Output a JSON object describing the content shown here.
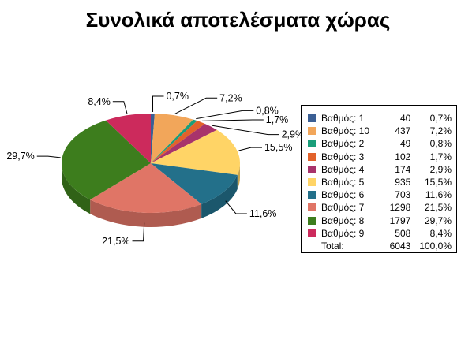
{
  "title": "Συνολικά αποτελέσματα χώρας",
  "chart_data": {
    "type": "pie",
    "title": "Συνολικά αποτελέσματα χώρας",
    "slices": [
      {
        "name": "Βαθμός: 1",
        "count": "40",
        "value": 0.7,
        "label": "0,7%",
        "legend_pct": "0,7%",
        "color": "#3b5f94"
      },
      {
        "name": "Βαθμός: 10",
        "count": "437",
        "value": 7.2,
        "label": "7,2%",
        "legend_pct": "7,2%",
        "color": "#f2a65a"
      },
      {
        "name": "Βαθμός: 2",
        "count": "49",
        "value": 0.8,
        "label": "0,8%",
        "legend_pct": "0,8%",
        "color": "#1a9e7a"
      },
      {
        "name": "Βαθμός: 3",
        "count": "102",
        "value": 1.7,
        "label": "1,7%",
        "legend_pct": "1,7%",
        "color": "#e2622b"
      },
      {
        "name": "Βαθμός: 4",
        "count": "174",
        "value": 2.9,
        "label": "2,9%",
        "legend_pct": "2,9%",
        "color": "#a8336b"
      },
      {
        "name": "Βαθμός: 5",
        "count": "935",
        "value": 15.5,
        "label": "15,5%",
        "legend_pct": "15,5%",
        "color": "#ffd466"
      },
      {
        "name": "Βαθμός: 6",
        "count": "703",
        "value": 11.6,
        "label": "11,6%",
        "legend_pct": "11,6%",
        "color": "#23708a"
      },
      {
        "name": "Βαθμός: 7",
        "count": "1298",
        "value": 21.5,
        "label": "21,5%",
        "legend_pct": "21,5%",
        "color": "#e07566"
      },
      {
        "name": "Βαθμός: 8",
        "count": "1797",
        "value": 29.7,
        "label": "29,7%",
        "legend_pct": "29,7%",
        "color": "#3d7d1d"
      },
      {
        "name": "Βαθμός: 9",
        "count": "508",
        "value": 8.4,
        "label": "8,4%",
        "legend_pct": "8,4%",
        "color": "#cc2a5c"
      }
    ],
    "total": {
      "name": "Total:",
      "count": "6043",
      "pct": "100,0%"
    },
    "legend_position": "right"
  }
}
